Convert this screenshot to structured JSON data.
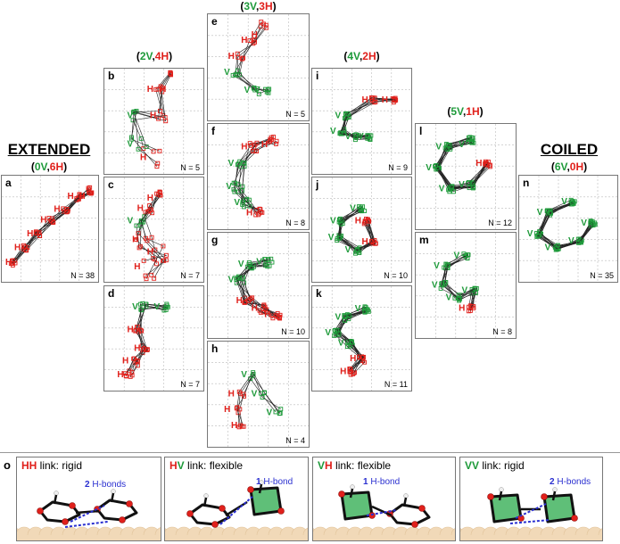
{
  "headers": {
    "extended": {
      "title": "EXTENDED",
      "v": "0V",
      "comma": ",",
      "h": "6H",
      "open": "(",
      "close": ")"
    },
    "coiled": {
      "title": "COILED",
      "v": "6V",
      "comma": ",",
      "h": "0H",
      "open": "(",
      "close": ")"
    },
    "col_2v4h": {
      "v": "2V",
      "comma": ",",
      "h": "4H",
      "open": "(",
      "close": ")"
    },
    "col_3v3h": {
      "v": "3V",
      "comma": ",",
      "h": "3H",
      "open": "(",
      "close": ")"
    },
    "col_4v2h": {
      "v": "4V",
      "comma": ",",
      "h": "2H",
      "open": "(",
      "close": ")"
    },
    "col_5v1h": {
      "v": "5V",
      "comma": ",",
      "h": "1H",
      "open": "(",
      "close": ")"
    }
  },
  "panels": [
    {
      "id": "a",
      "n": "N = 38"
    },
    {
      "id": "b",
      "n": "N = 5"
    },
    {
      "id": "c",
      "n": "N = 7"
    },
    {
      "id": "d",
      "n": "N = 7"
    },
    {
      "id": "e",
      "n": "N = 5"
    },
    {
      "id": "f",
      "n": "N = 8"
    },
    {
      "id": "g",
      "n": "N = 10"
    },
    {
      "id": "h",
      "n": "N = 4"
    },
    {
      "id": "i",
      "n": "N = 9"
    },
    {
      "id": "j",
      "n": "N = 10"
    },
    {
      "id": "k",
      "n": "N = 11"
    },
    {
      "id": "l",
      "n": "N = 12"
    },
    {
      "id": "m",
      "n": "N = 8"
    },
    {
      "id": "n",
      "n": "N = 35"
    }
  ],
  "marker_letters": {
    "v": "V",
    "h": "H"
  },
  "links": {
    "label": "o",
    "items": [
      {
        "code": "HH",
        "text": " link: rigid",
        "hbond_count": "2",
        "hbond_text": " H-bonds"
      },
      {
        "code": "HV",
        "text": " link: flexible",
        "hbond_count": "1",
        "hbond_text": " H-bond"
      },
      {
        "code": "VH",
        "text": " link: flexible",
        "hbond_count": "1",
        "hbond_text": " H-bond"
      },
      {
        "code": "VV",
        "text": " link: rigid",
        "hbond_count": "2",
        "hbond_text": " H-bonds"
      }
    ]
  },
  "colors": {
    "v": "#1e9a3a",
    "h": "#e0201b",
    "hbond": "#2a2fd0",
    "surface": "#f1d9b8"
  }
}
